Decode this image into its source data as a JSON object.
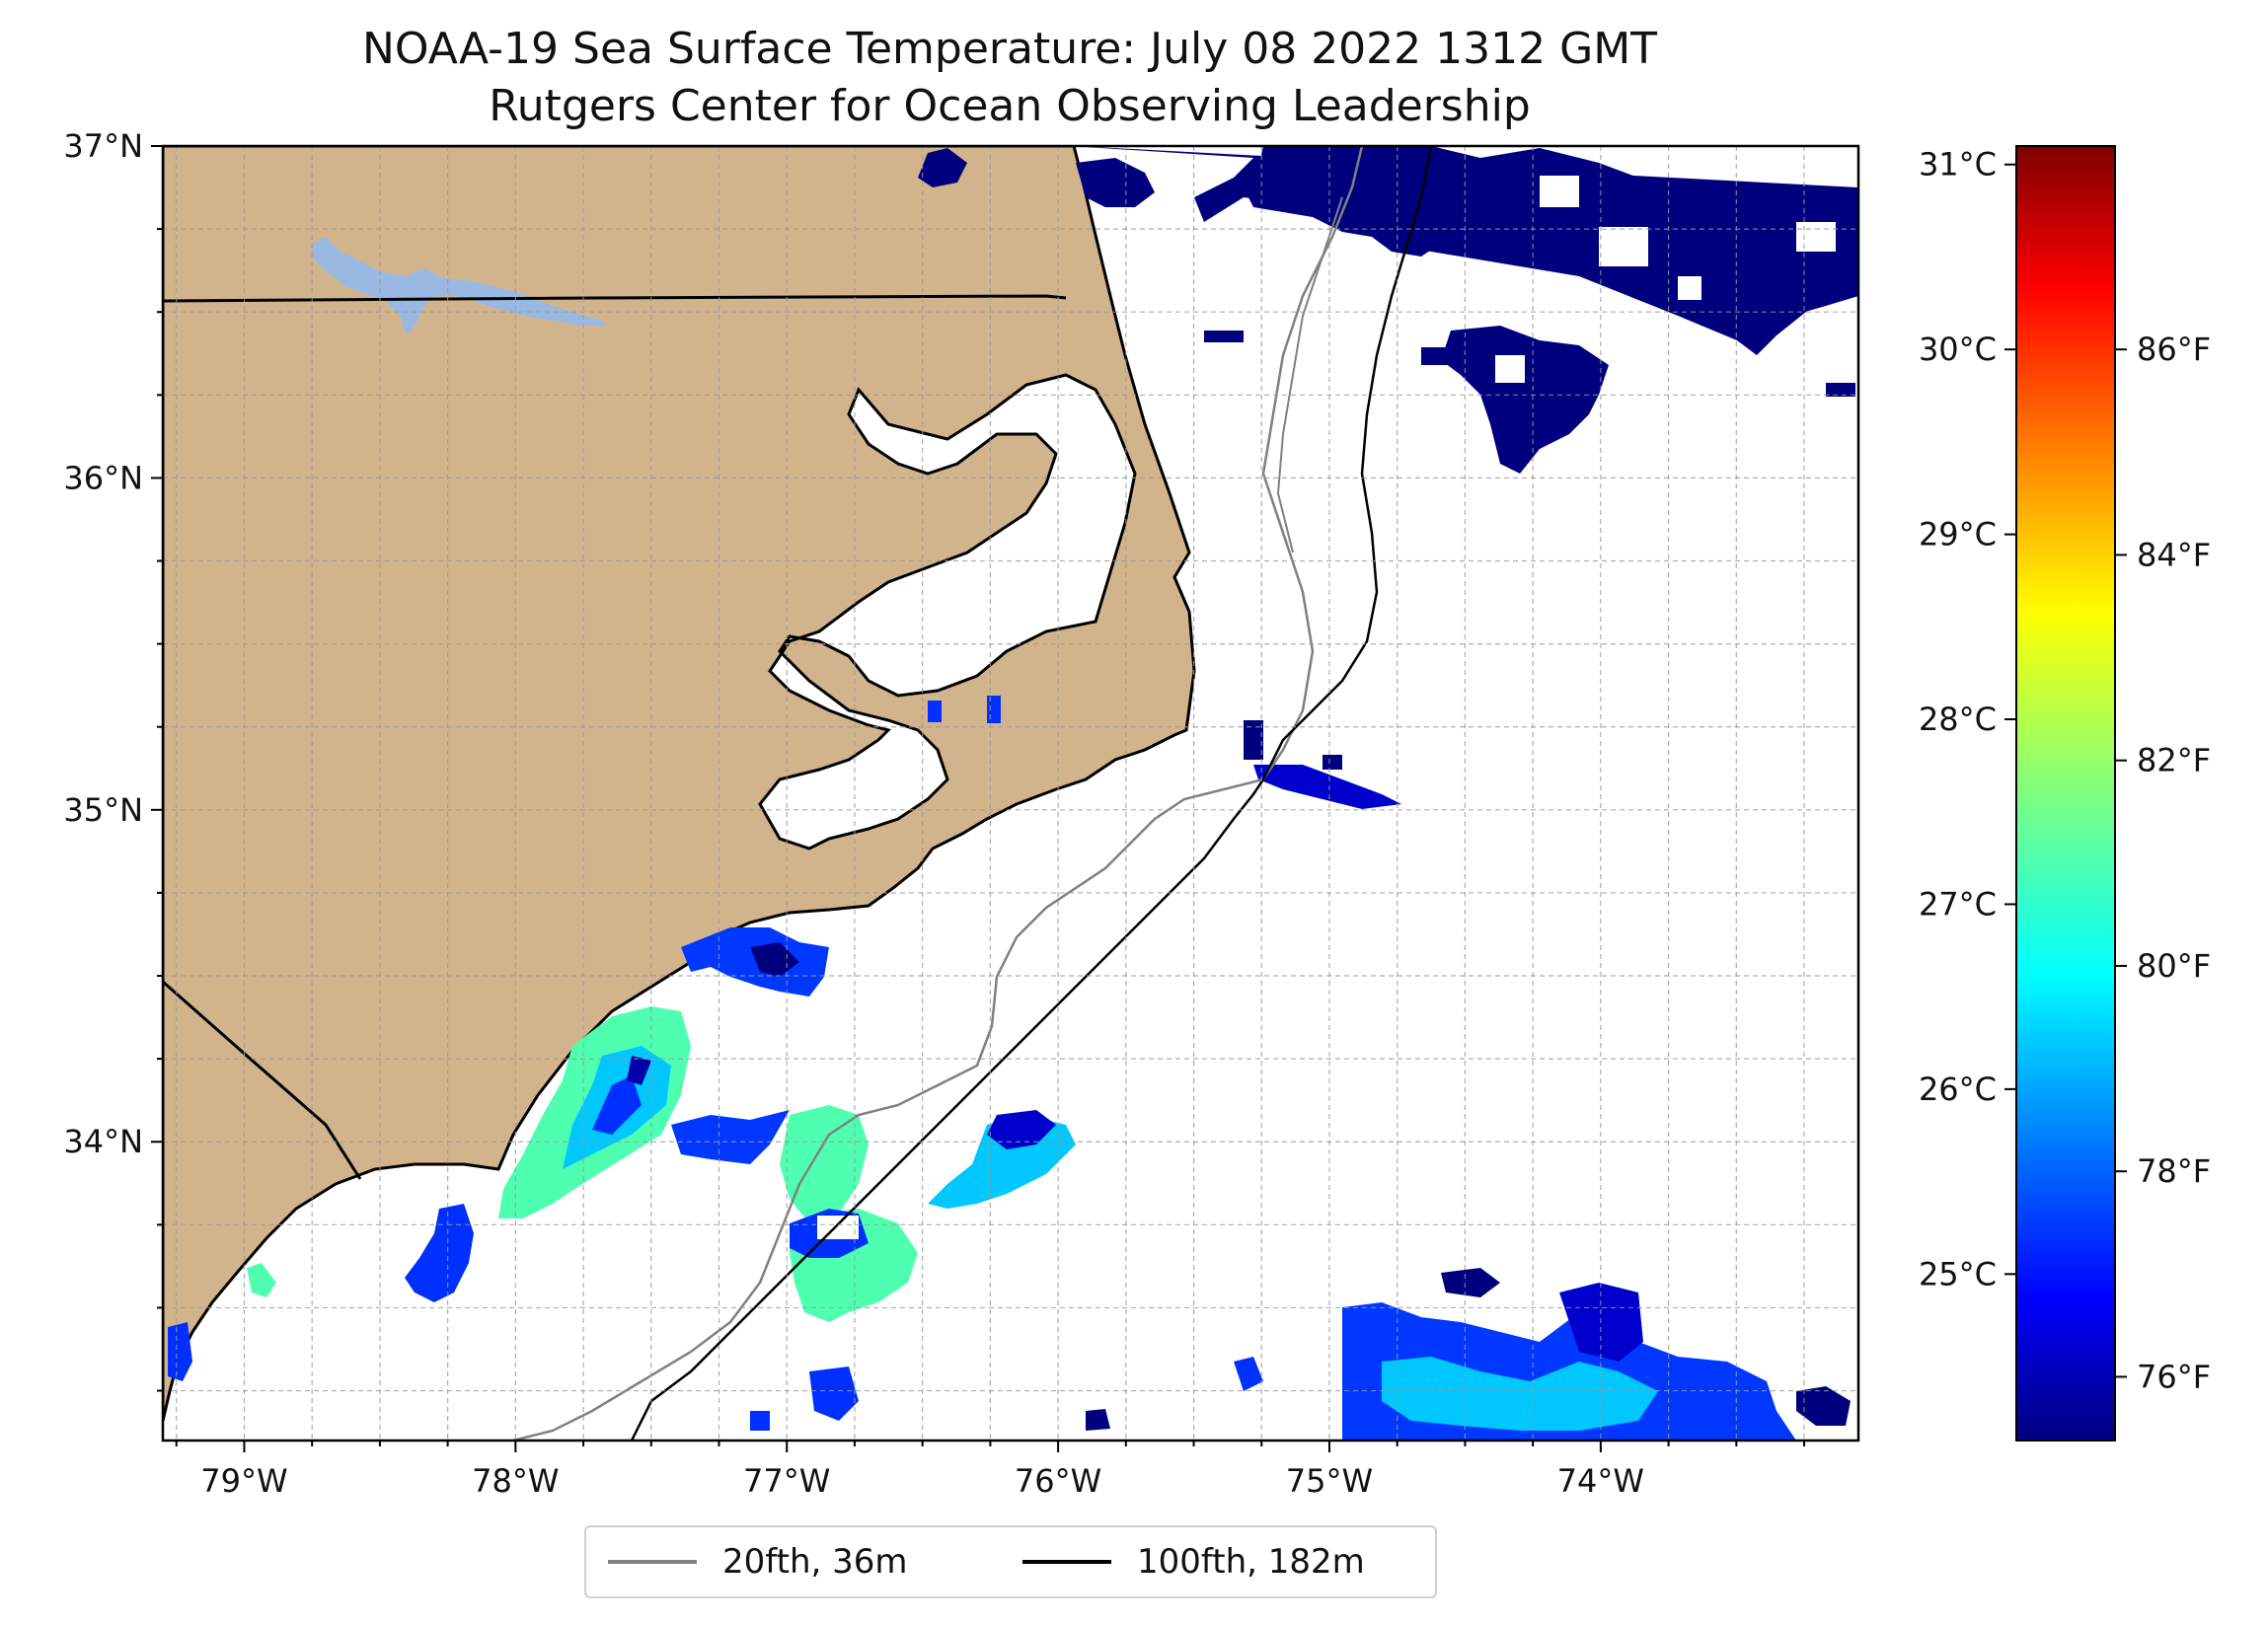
{
  "title": {
    "line1": "NOAA-19 Sea Surface Temperature: July 08 2022 1312 GMT",
    "line2": "Rutgers Center for Ocean Observing Leadership"
  },
  "map": {
    "extent": {
      "lon_min": -79.3,
      "lon_max": -73.05,
      "lat_min": 33.1,
      "lat_max": 37.0
    },
    "projection": "PlateCarree",
    "lat_ticks": [
      {
        "value": 37,
        "label": "37°N"
      },
      {
        "value": 36,
        "label": "36°N"
      },
      {
        "value": 35,
        "label": "35°N"
      },
      {
        "value": 34,
        "label": "34°N"
      }
    ],
    "lon_ticks": [
      {
        "value": -79,
        "label": "79°W"
      },
      {
        "value": -78,
        "label": "78°W"
      },
      {
        "value": -77,
        "label": "77°W"
      },
      {
        "value": -76,
        "label": "76°W"
      },
      {
        "value": -75,
        "label": "75°W"
      },
      {
        "value": -74,
        "label": "74°W"
      }
    ],
    "grid": true,
    "land_color": "#d2b48c",
    "water_body_color": "#9ab9e2",
    "no_data_color": "#ffffff"
  },
  "colorbar": {
    "colormap": "jet",
    "celsius_range": [
      24.1,
      31.1
    ],
    "celsius_ticks": [
      {
        "value": 25,
        "label": "25°C"
      },
      {
        "value": 26,
        "label": "26°C"
      },
      {
        "value": 27,
        "label": "27°C"
      },
      {
        "value": 28,
        "label": "28°C"
      },
      {
        "value": 29,
        "label": "29°C"
      },
      {
        "value": 30,
        "label": "30°C"
      },
      {
        "value": 31,
        "label": "31°C"
      }
    ],
    "fahrenheit_ticks": [
      {
        "value": 76,
        "label": "76°F"
      },
      {
        "value": 78,
        "label": "78°F"
      },
      {
        "value": 80,
        "label": "80°F"
      },
      {
        "value": 82,
        "label": "82°F"
      },
      {
        "value": 84,
        "label": "84°F"
      },
      {
        "value": 86,
        "label": "86°F"
      }
    ]
  },
  "legend": {
    "placement": "bottom-center",
    "entries": [
      {
        "label": "20fth, 36m",
        "color": "#808080"
      },
      {
        "label": "100fth, 182m",
        "color": "#000000"
      }
    ]
  }
}
